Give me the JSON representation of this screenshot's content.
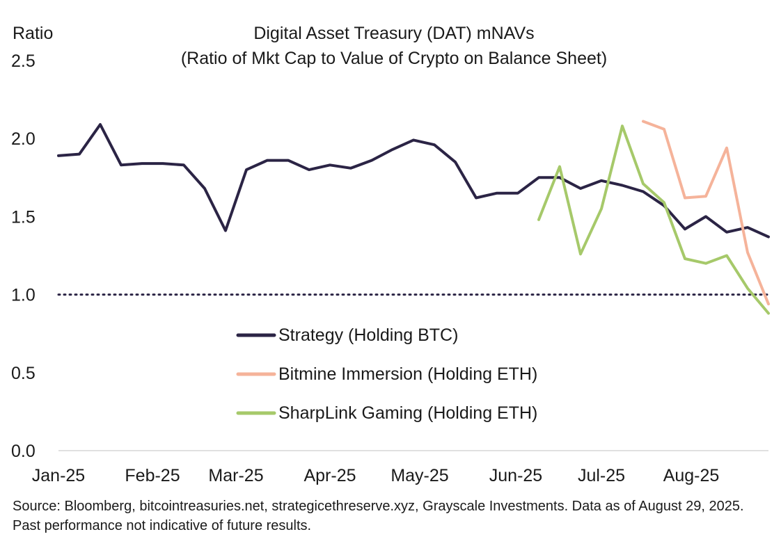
{
  "chart_data": {
    "type": "line",
    "title": "Digital Asset Treasury (DAT) mNAVs",
    "subtitle": "(Ratio of Mkt Cap to Value of Crypto on Balance Sheet)",
    "ylabel": "Ratio",
    "xlabel": "",
    "ylim": [
      0,
      2.5
    ],
    "yticks": [
      "0.0",
      "0.5",
      "1.0",
      "1.5",
      "2.0",
      "2.5"
    ],
    "xticks": [
      {
        "label": "Jan-25",
        "week": 0
      },
      {
        "label": "Feb-25",
        "week": 4.5
      },
      {
        "label": "Mar-25",
        "week": 8.5
      },
      {
        "label": "Apr-25",
        "week": 13
      },
      {
        "label": "May-25",
        "week": 17.3
      },
      {
        "label": "Jun-25",
        "week": 21.9
      },
      {
        "label": "Jul-25",
        "week": 26
      },
      {
        "label": "Aug-25",
        "week": 30.3
      }
    ],
    "xlim": [
      0,
      34
    ],
    "reference_line": {
      "y": 1.0,
      "style": "dotted"
    },
    "grid": false,
    "legend_position": "lower-center",
    "series": [
      {
        "name": "Strategy (Holding BTC)",
        "color": "#2b2445",
        "points": [
          [
            0,
            1.89
          ],
          [
            1,
            1.9
          ],
          [
            2,
            2.09
          ],
          [
            3,
            1.83
          ],
          [
            4,
            1.84
          ],
          [
            5,
            1.84
          ],
          [
            6,
            1.83
          ],
          [
            7,
            1.68
          ],
          [
            8,
            1.41
          ],
          [
            9,
            1.8
          ],
          [
            10,
            1.86
          ],
          [
            11,
            1.86
          ],
          [
            12,
            1.8
          ],
          [
            13,
            1.83
          ],
          [
            14,
            1.81
          ],
          [
            15,
            1.86
          ],
          [
            16,
            1.93
          ],
          [
            17,
            1.99
          ],
          [
            18,
            1.96
          ],
          [
            19,
            1.85
          ],
          [
            20,
            1.62
          ],
          [
            21,
            1.65
          ],
          [
            22,
            1.65
          ],
          [
            23,
            1.75
          ],
          [
            24,
            1.75
          ],
          [
            25,
            1.68
          ],
          [
            26,
            1.73
          ],
          [
            27,
            1.7
          ],
          [
            28,
            1.66
          ],
          [
            29,
            1.57
          ],
          [
            30,
            1.42
          ],
          [
            31,
            1.5
          ],
          [
            32,
            1.4
          ],
          [
            33,
            1.43
          ],
          [
            34,
            1.37
          ]
        ]
      },
      {
        "name": "Bitmine Immersion (Holding ETH)",
        "color": "#f5b39a",
        "points": [
          [
            28,
            2.11
          ],
          [
            29,
            2.06
          ],
          [
            30,
            1.62
          ],
          [
            31,
            1.63
          ],
          [
            32,
            1.94
          ],
          [
            33,
            1.27
          ],
          [
            34,
            0.94
          ]
        ]
      },
      {
        "name": "SharpLink Gaming (Holding ETH)",
        "color": "#a6c96a",
        "points": [
          [
            23,
            1.48
          ],
          [
            24,
            1.82
          ],
          [
            25,
            1.26
          ],
          [
            26,
            1.55
          ],
          [
            27,
            2.08
          ],
          [
            28,
            1.71
          ],
          [
            29,
            1.59
          ],
          [
            30,
            1.23
          ],
          [
            31,
            1.2
          ],
          [
            32,
            1.25
          ],
          [
            33,
            1.04
          ],
          [
            34,
            0.88
          ]
        ]
      }
    ]
  },
  "source_text": "Source: Bloomberg, bitcointreasuries.net, strategicethreserve.xyz, Grayscale Investments. Data as of August 29, 2025. Past performance not indicative of future results."
}
